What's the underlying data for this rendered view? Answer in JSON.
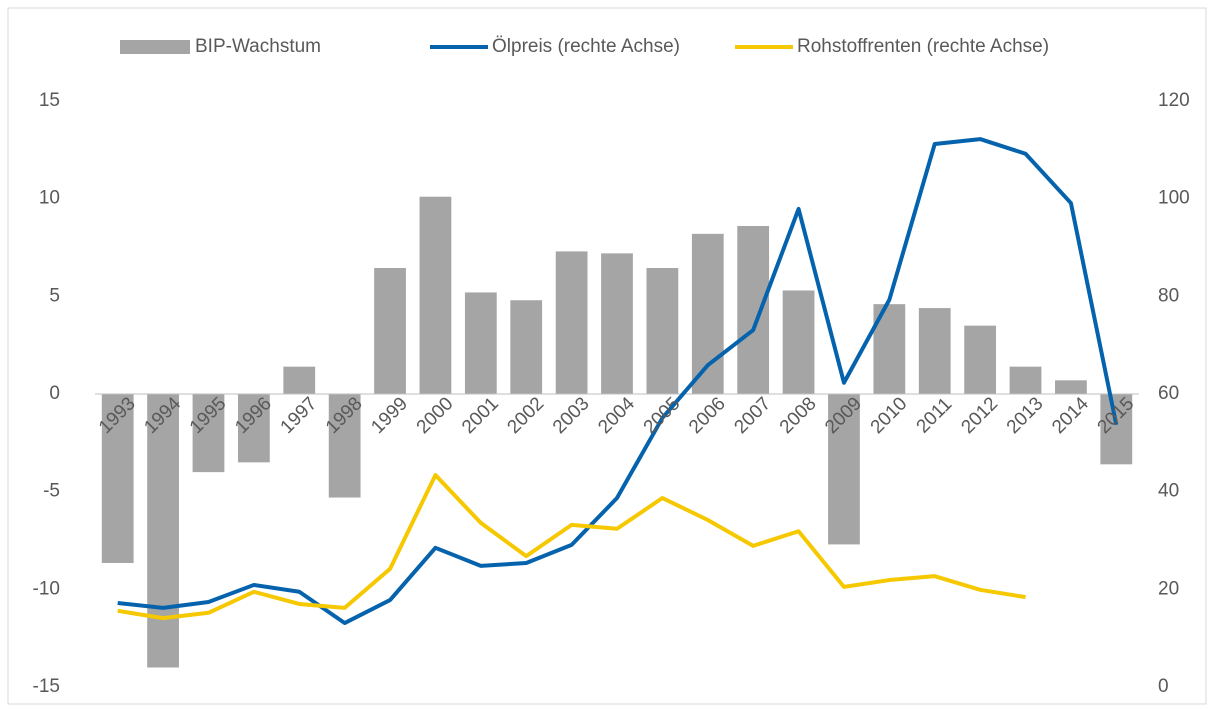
{
  "chart_data": {
    "type": "bar-line",
    "categories": [
      "1993",
      "1994",
      "1995",
      "1996",
      "1997",
      "1998",
      "1999",
      "2000",
      "2001",
      "2002",
      "2003",
      "2004",
      "2005",
      "2006",
      "2007",
      "2008",
      "2009",
      "2010",
      "2011",
      "2012",
      "2013",
      "2014",
      "2015"
    ],
    "series": [
      {
        "name": "BIP-Wachstum",
        "type": "bar",
        "color": "#a5a5a5",
        "axis": "y",
        "values": [
          -8.65,
          -14.0,
          -4.0,
          -3.5,
          1.4,
          -5.3,
          6.45,
          10.1,
          5.2,
          4.8,
          7.3,
          7.2,
          6.45,
          8.2,
          8.6,
          5.3,
          -7.7,
          4.6,
          4.4,
          3.5,
          1.4,
          0.7,
          -3.6
        ]
      },
      {
        "name": "Ölpreis (rechte Achse)",
        "type": "line",
        "color": "#0563ad",
        "axis": "y2",
        "values": [
          17.2,
          16.2,
          17.4,
          20.9,
          19.5,
          13.1,
          17.8,
          28.5,
          24.8,
          25.4,
          29.1,
          38.7,
          55.1,
          65.9,
          73.1,
          97.9,
          62.3,
          79.3,
          111.2,
          112.2,
          109.2,
          99.1,
          53.7
        ]
      },
      {
        "name": "Rohstoffrenten (rechte Achse)",
        "type": "line",
        "color": "#f6c800",
        "axis": "y2",
        "values": [
          15.6,
          14.1,
          15.2,
          19.5,
          17.0,
          16.2,
          24.2,
          43.4,
          33.6,
          26.8,
          33.2,
          32.4,
          38.7,
          34.2,
          28.9,
          31.9,
          20.5,
          21.9,
          22.7,
          19.9,
          18.4,
          null,
          null
        ]
      }
    ],
    "ylim": [
      -15,
      15
    ],
    "yticks": [
      -15,
      -10,
      -5,
      0,
      5,
      10,
      15
    ],
    "y2lim": [
      0,
      120
    ],
    "y2ticks": [
      0,
      20,
      40,
      60,
      80,
      100,
      120
    ],
    "legend": "top",
    "grid": false
  }
}
